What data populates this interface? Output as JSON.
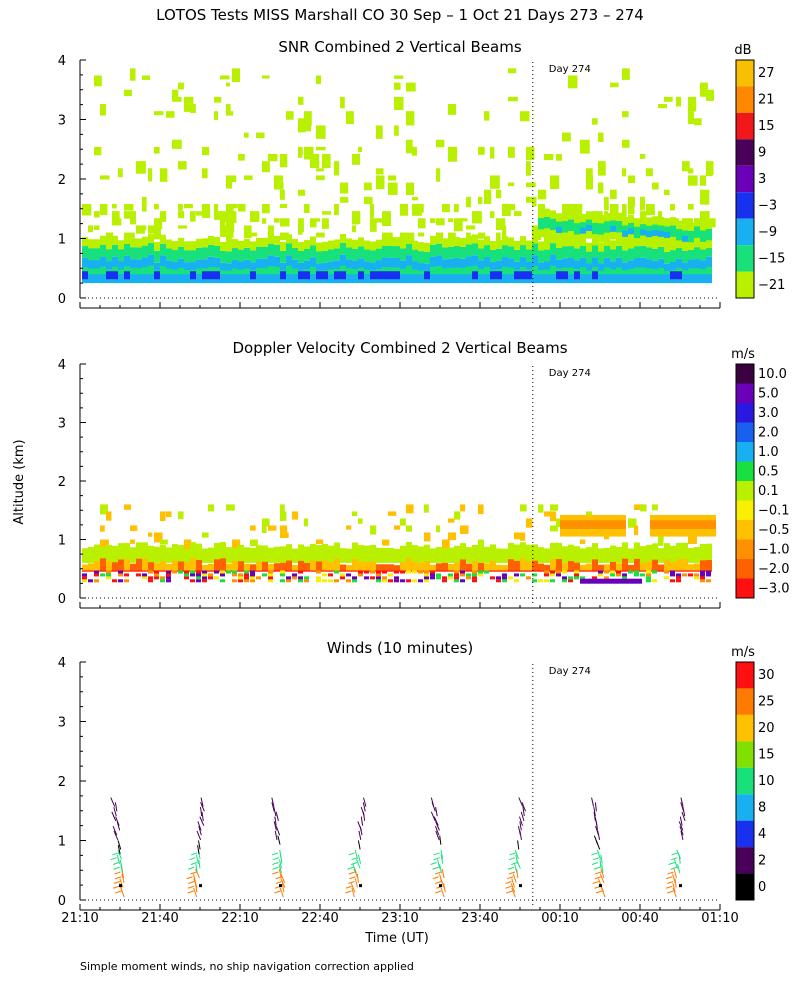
{
  "title": "LOTOS Tests MISS Marshall CO  30 Sep –  1 Oct 21 Days 273 – 274",
  "ylabel": "Altitude (km)",
  "xlabel": "Time (UT)",
  "footnote": "Simple moment winds, no ship navigation correction applied",
  "day_marker": "Day 274",
  "time_ticks": [
    "21:10",
    "21:40",
    "22:10",
    "22:40",
    "23:10",
    "23:40",
    "00:10",
    "00:40",
    "01:10"
  ],
  "alt_ticks": [
    "0",
    "1",
    "2",
    "3",
    "4"
  ],
  "panels": [
    {
      "title": "SNR Combined 2 Vertical Beams",
      "unit": "dB",
      "cb_labels": [
        "27",
        "21",
        "15",
        "9",
        "3",
        "−3",
        "−9",
        "−15",
        "−21"
      ],
      "cb_colors": [
        "#f7c000",
        "#ff8800",
        "#f01818",
        "#48005a",
        "#6a00b8",
        "#1830f0",
        "#18b0f0",
        "#18e07a",
        "#b8f000"
      ]
    },
    {
      "title": "Doppler Velocity Combined 2 Vertical Beams",
      "unit": "m/s",
      "cb_labels": [
        "10.0",
        "5.0",
        "3.0",
        "2.0",
        "1.0",
        "0.5",
        "0.1",
        "−0.1",
        "−0.5",
        "−1.0",
        "−2.0",
        "−3.0"
      ],
      "cb_colors": [
        "#3a0040",
        "#6a00b8",
        "#2818e0",
        "#1860f0",
        "#18b0f0",
        "#18e040",
        "#b8f000",
        "#f8f000",
        "#ffc000",
        "#ff9000",
        "#ff6000",
        "#ff1010"
      ]
    },
    {
      "title": "Winds (10 minutes)",
      "unit": "m/s",
      "cb_labels": [
        "30",
        "25",
        "20",
        "15",
        "10",
        "8",
        "4",
        "2",
        "0"
      ],
      "cb_colors": [
        "#ff1010",
        "#ff7a00",
        "#ffc000",
        "#80e000",
        "#18e07a",
        "#18b0f0",
        "#1830f0",
        "#48005a",
        "#000000"
      ]
    }
  ],
  "chart_data": {
    "type": "heatmap",
    "x_range_hours_after_2110": [
      0,
      4
    ],
    "day_boundary_hours_after_2110": 2.83,
    "y_range_km": [
      0,
      4
    ],
    "snr_layer": {
      "base_km": 0.25,
      "strong_top_km": 0.65,
      "weak_top_km": 1.5,
      "cloud_layer_day274_km": [
        0.9,
        1.5
      ]
    },
    "velocity_layer": {
      "base_km": 0.25,
      "top_km": 0.9,
      "day274_layer_km": [
        1.0,
        1.4
      ]
    },
    "wind_profiles_times": [
      "21:25",
      "21:55",
      "22:25",
      "22:55",
      "23:25",
      "23:55",
      "00:25",
      "00:55"
    ],
    "wind_max_altitude_km": 1.6
  }
}
